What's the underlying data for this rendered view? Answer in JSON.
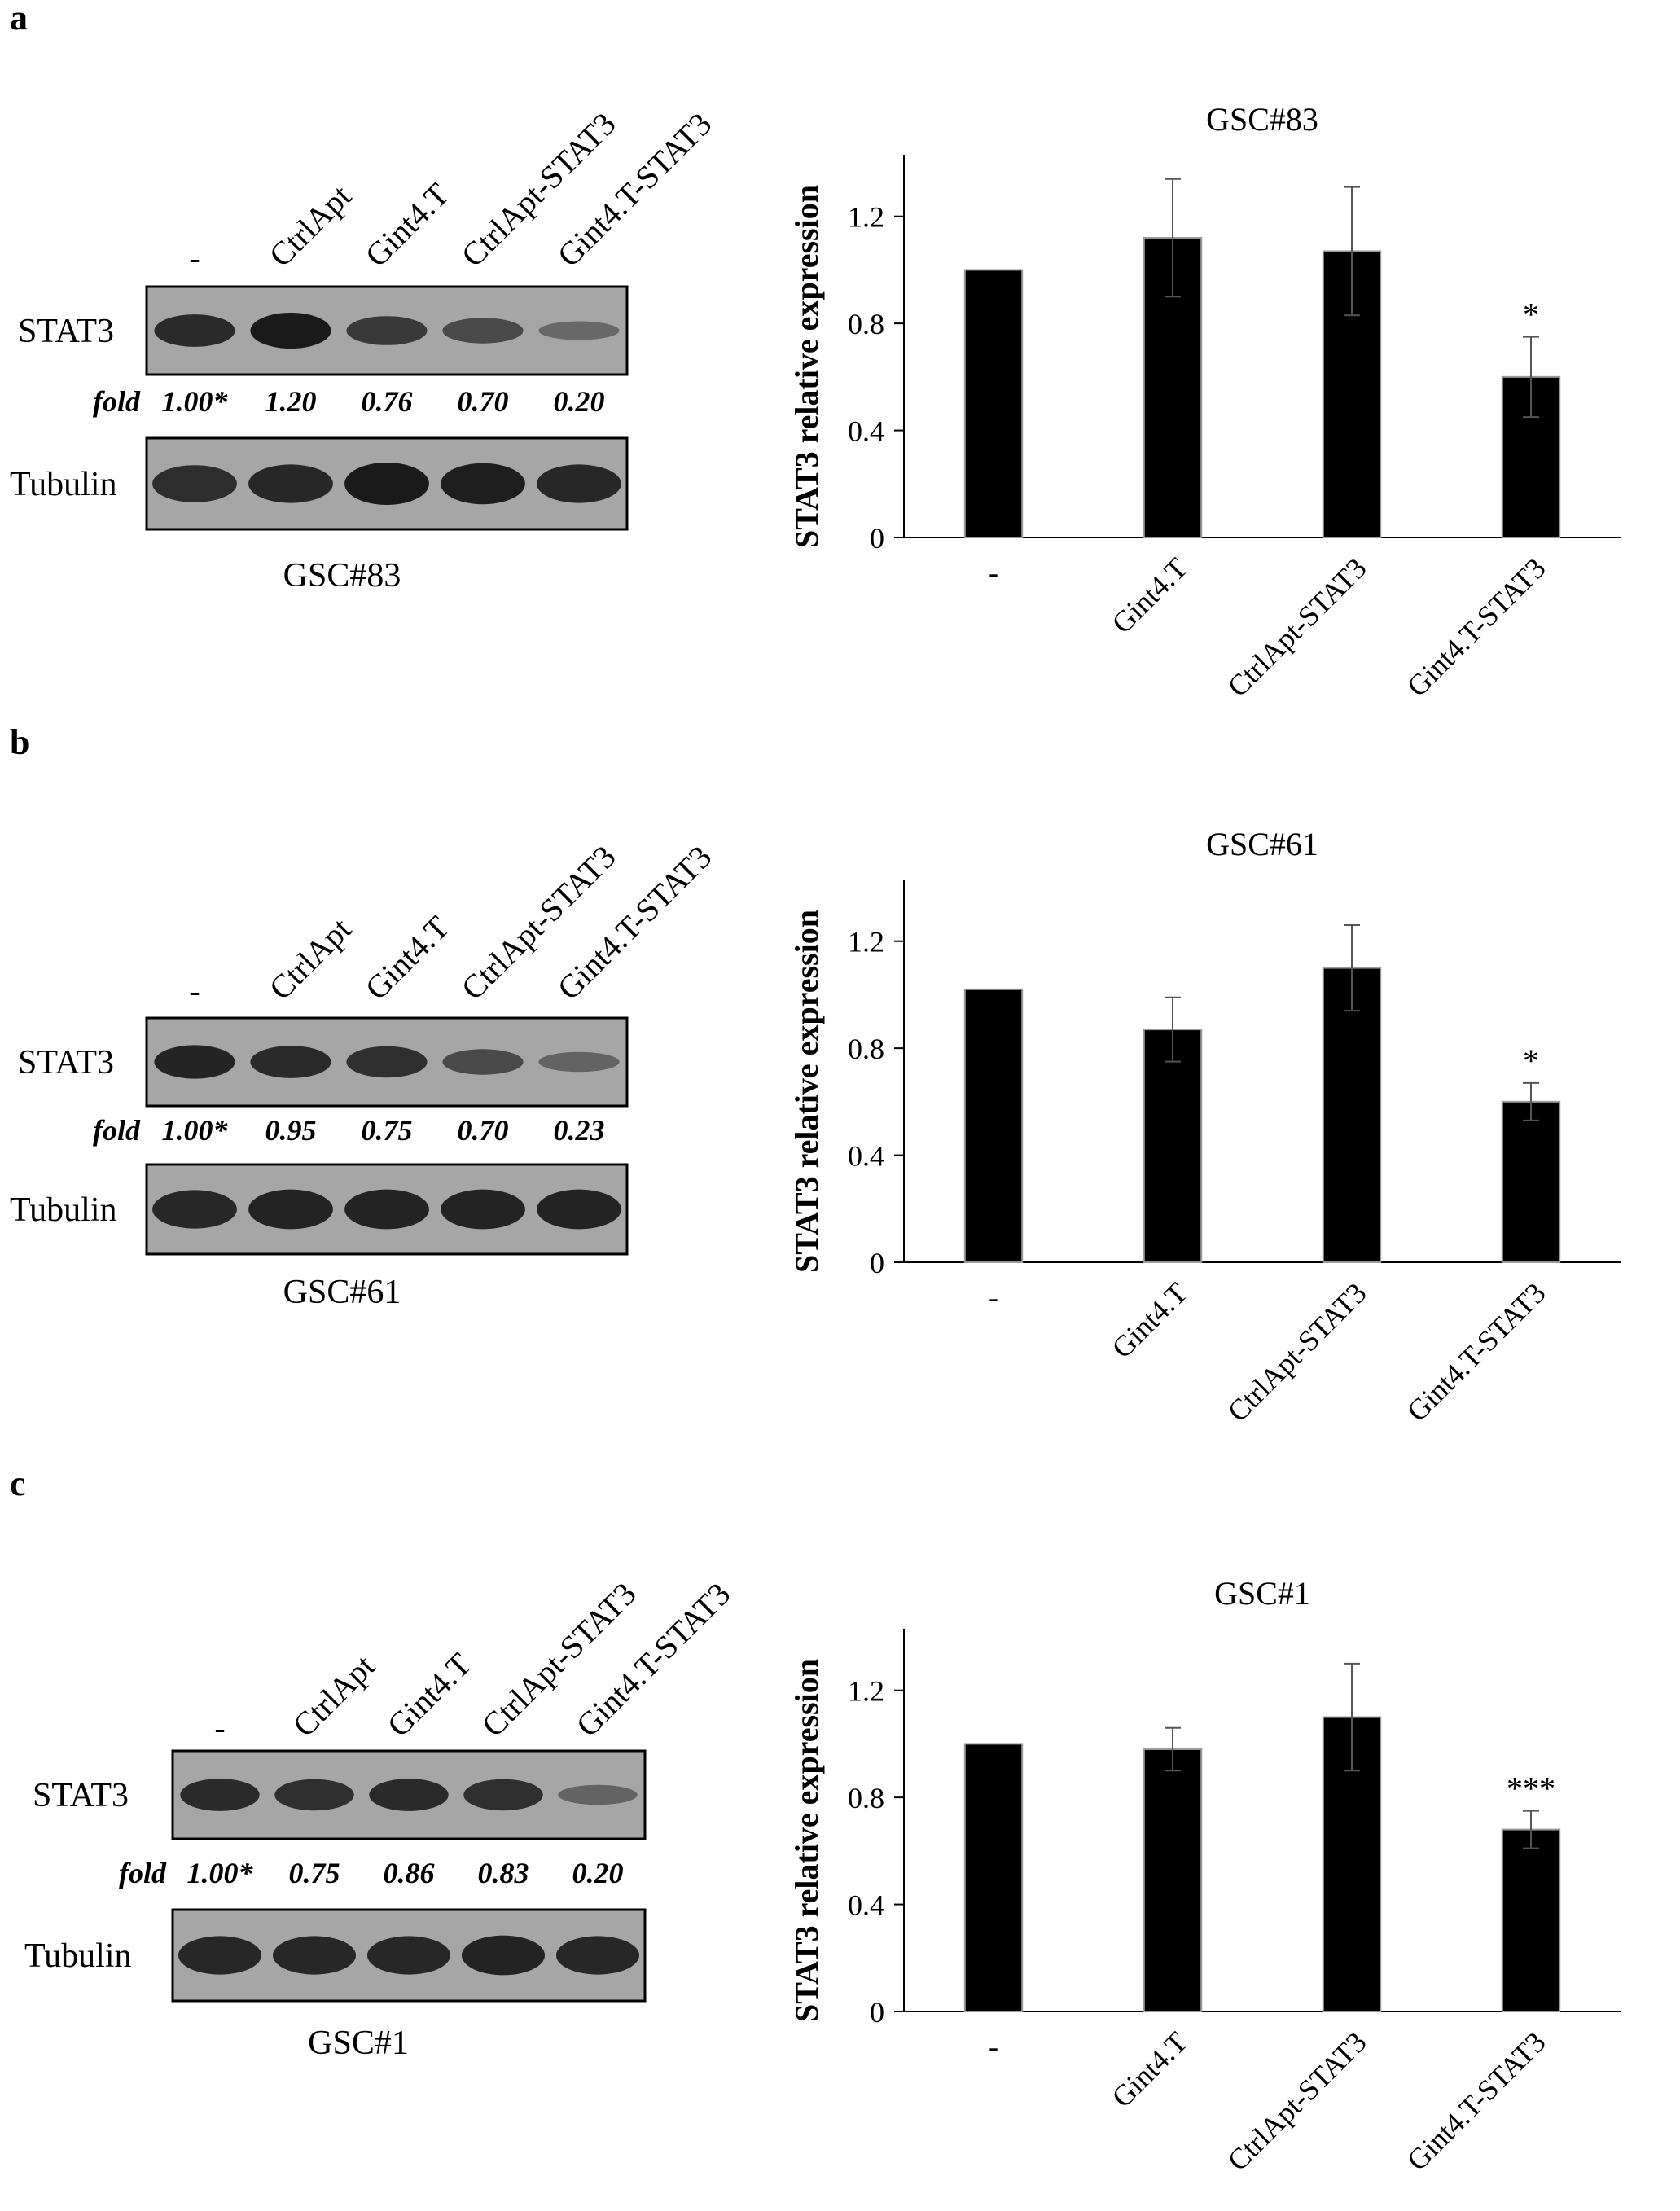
{
  "figure": {
    "lanes": [
      "-",
      "CtrlApt",
      "Gint4.T",
      "CtrlApt-STAT3",
      "Gint4.T-STAT3"
    ],
    "row_labels": {
      "stat3": "STAT3",
      "fold": "fold",
      "tubulin": "Tubulin"
    }
  },
  "panels": [
    {
      "letter": "a",
      "cell_line": "GSC#83",
      "fold_values": [
        "1.00*",
        "1.20",
        "0.76",
        "0.70",
        "0.20"
      ],
      "stat3_band_intensity": [
        0.85,
        1.0,
        0.7,
        0.55,
        0.25
      ],
      "tubulin_band_intensity": [
        0.8,
        0.85,
        1.0,
        0.95,
        0.85
      ],
      "chart_data": {
        "type": "bar",
        "title": "GSC#83",
        "ylabel": "STAT3 relative expression",
        "xlabel": "",
        "categories": [
          "-",
          "Gint4.T",
          "CtrlApt-STAT3",
          "Gint4.T-STAT3"
        ],
        "values": [
          1.0,
          1.12,
          1.07,
          0.6
        ],
        "errors": [
          0.0,
          0.22,
          0.24,
          0.15
        ],
        "significance": [
          "",
          "",
          "",
          "*"
        ],
        "ylim": [
          0,
          1.4
        ],
        "yticks": [
          0,
          0.4,
          0.8,
          1.2
        ],
        "ytick_labels": [
          "0",
          "0.4",
          "0.8",
          "1.2"
        ]
      }
    },
    {
      "letter": "b",
      "cell_line": "GSC#61",
      "fold_values": [
        "1.00*",
        "0.95",
        "0.75",
        "0.70",
        "0.23"
      ],
      "stat3_band_intensity": [
        0.9,
        0.85,
        0.8,
        0.55,
        0.3
      ],
      "tubulin_band_intensity": [
        0.85,
        0.9,
        0.9,
        0.9,
        0.9
      ],
      "chart_data": {
        "type": "bar",
        "title": "GSC#61",
        "ylabel": "STAT3 relative expression",
        "xlabel": "",
        "categories": [
          "-",
          "Gint4.T",
          "CtrlApt-STAT3",
          "Gint4.T-STAT3"
        ],
        "values": [
          1.02,
          0.87,
          1.1,
          0.6
        ],
        "errors": [
          0.0,
          0.12,
          0.16,
          0.07
        ],
        "significance": [
          "",
          "",
          "",
          "*"
        ],
        "ylim": [
          0,
          1.4
        ],
        "yticks": [
          0,
          0.4,
          0.8,
          1.2
        ],
        "ytick_labels": [
          "0",
          "0.4",
          "0.8",
          "1.2"
        ]
      }
    },
    {
      "letter": "c",
      "cell_line": "GSC#1",
      "fold_values": [
        "1.00*",
        "0.75",
        "0.86",
        "0.83",
        "0.20"
      ],
      "stat3_band_intensity": [
        0.85,
        0.8,
        0.85,
        0.8,
        0.3
      ],
      "tubulin_band_intensity": [
        0.85,
        0.85,
        0.85,
        0.9,
        0.85
      ],
      "chart_data": {
        "type": "bar",
        "title": "GSC#1",
        "ylabel": "STAT3 relative expression",
        "xlabel": "",
        "categories": [
          "-",
          "Gint4.T",
          "CtrlApt-STAT3",
          "Gint4.T-STAT3"
        ],
        "values": [
          1.0,
          0.98,
          1.1,
          0.68
        ],
        "errors": [
          0.0,
          0.08,
          0.2,
          0.07
        ],
        "significance": [
          "",
          "",
          "",
          "***"
        ],
        "ylim": [
          0,
          1.4
        ],
        "yticks": [
          0,
          0.4,
          0.8,
          1.2
        ],
        "ytick_labels": [
          "0",
          "0.4",
          "0.8",
          "1.2"
        ]
      }
    }
  ],
  "style": {
    "bar_color": "#000000",
    "blot_background": "#a6a6a6",
    "band_color": "#1a1a1a"
  }
}
